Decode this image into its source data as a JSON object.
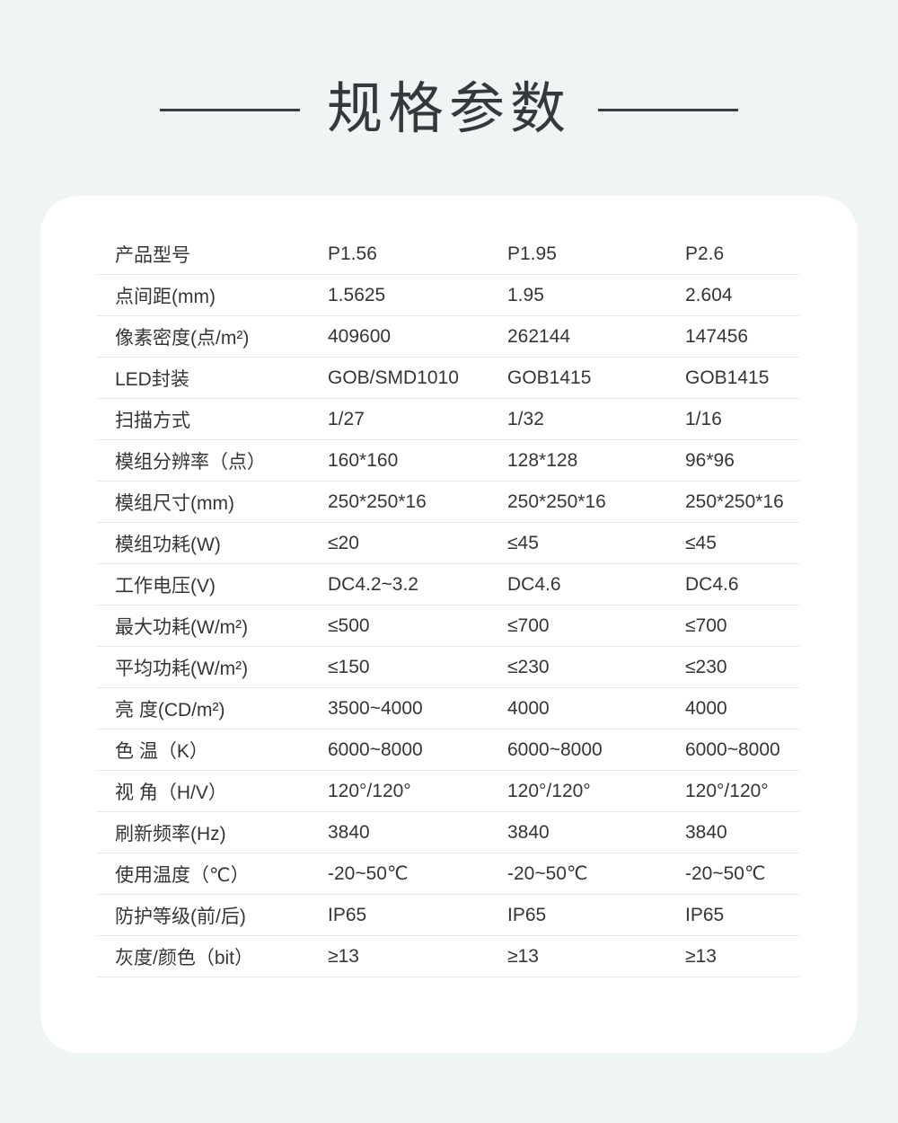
{
  "page": {
    "title": "规格参数"
  },
  "spec_card": {
    "rows": [
      {
        "label": "产品型号",
        "values": [
          "P1.56",
          "P1.95",
          "P2.6"
        ]
      },
      {
        "label": "点间距(mm)",
        "values": [
          "1.5625",
          "1.95",
          "2.604"
        ]
      },
      {
        "label": "像素密度(点/m²)",
        "values": [
          "409600",
          "262144",
          "147456"
        ]
      },
      {
        "label": "LED封装",
        "values": [
          "GOB/SMD1010",
          "GOB1415",
          "GOB1415"
        ]
      },
      {
        "label": "扫描方式",
        "values": [
          "1/27",
          "1/32",
          "1/16"
        ]
      },
      {
        "label": "模组分辨率（点）",
        "values": [
          "160*160",
          "128*128",
          "96*96"
        ]
      },
      {
        "label": "模组尺寸(mm)",
        "values": [
          "250*250*16",
          "250*250*16",
          "250*250*16"
        ]
      },
      {
        "label": "模组功耗(W)",
        "values": [
          "≤20",
          "≤45",
          "≤45"
        ]
      },
      {
        "label": "工作电压(V)",
        "values": [
          "DC4.2~3.2",
          "DC4.6",
          "DC4.6"
        ]
      },
      {
        "label": "最大功耗(W/m²)",
        "values": [
          "≤500",
          "≤700",
          "≤700"
        ]
      },
      {
        "label": "平均功耗(W/m²)",
        "values": [
          "≤150",
          "≤230",
          "≤230"
        ]
      },
      {
        "label": "亮 度(CD/m²)",
        "values": [
          "3500~4000",
          "4000",
          "4000"
        ]
      },
      {
        "label": "色 温（K）",
        "values": [
          "6000~8000",
          "6000~8000",
          "6000~8000"
        ]
      },
      {
        "label": "视 角（H/V）",
        "values": [
          "120°/120°",
          "120°/120°",
          "120°/120°"
        ]
      },
      {
        "label": "刷新频率(Hz)",
        "values": [
          "3840",
          "3840",
          "3840"
        ]
      },
      {
        "label": "使用温度（℃）",
        "values": [
          "-20~50℃",
          "-20~50℃",
          "-20~50℃"
        ]
      },
      {
        "label": "防护等级(前/后)",
        "values": [
          "IP65",
          "IP65",
          "IP65"
        ]
      },
      {
        "label": "灰度/颜色（bit）",
        "values": [
          "≥13",
          "≥13",
          "≥13"
        ]
      }
    ]
  },
  "colors": {
    "background": "#eef5f4",
    "card": "#ffffff",
    "text": "#333639",
    "title": "#36393c",
    "divider": "#e9e9e9"
  }
}
